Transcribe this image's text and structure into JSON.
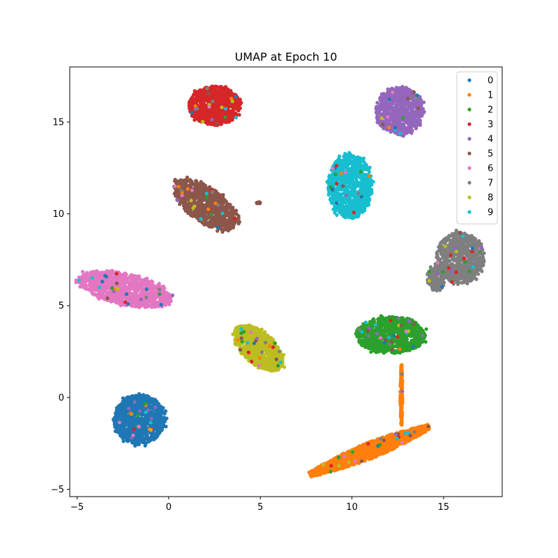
{
  "chart_data": {
    "type": "scatter",
    "title": "UMAP at Epoch 10",
    "xlabel": "",
    "ylabel": "",
    "xlim": [
      -5.4,
      18.2
    ],
    "ylim": [
      -5.4,
      18.0
    ],
    "xticks": [
      -5,
      0,
      5,
      10,
      15
    ],
    "yticks": [
      -5,
      0,
      5,
      10,
      15
    ],
    "grid": false,
    "legend_position": "top-right",
    "series": [
      {
        "name": "0",
        "color": "#1f77b4",
        "clusters": [
          {
            "type": "blob",
            "cx": -1.6,
            "cy": -1.2,
            "rx": 1.4,
            "ry": 1.35,
            "rot": 0,
            "n": 900
          }
        ]
      },
      {
        "name": "1",
        "color": "#ff7f0e",
        "clusters": [
          {
            "type": "segment",
            "x0": 7.7,
            "y0": -4.2,
            "x1": 14.2,
            "y1": -1.6,
            "width": 0.45,
            "n": 1400
          },
          {
            "type": "segment",
            "x0": 12.7,
            "y0": -1.5,
            "x1": 12.7,
            "y1": 1.8,
            "width": 0.07,
            "n": 160
          }
        ]
      },
      {
        "name": "2",
        "color": "#2ca02c",
        "clusters": [
          {
            "type": "blob",
            "cx": 12.1,
            "cy": 3.4,
            "rx": 1.9,
            "ry": 1.0,
            "rot": 0,
            "n": 900
          }
        ]
      },
      {
        "name": "3",
        "color": "#d62728",
        "clusters": [
          {
            "type": "blob",
            "cx": 2.5,
            "cy": 15.9,
            "rx": 1.4,
            "ry": 1.05,
            "rot": 0,
            "n": 900
          }
        ]
      },
      {
        "name": "4",
        "color": "#9467bd",
        "clusters": [
          {
            "type": "blob",
            "cx": 12.6,
            "cy": 15.6,
            "rx": 1.3,
            "ry": 1.3,
            "rot": 0,
            "n": 800
          }
        ]
      },
      {
        "name": "5",
        "color": "#8c564b",
        "clusters": [
          {
            "type": "blob",
            "cx": 2.0,
            "cy": 10.5,
            "rx": 2.0,
            "ry": 0.95,
            "rot": -35,
            "n": 900
          },
          {
            "type": "blob",
            "cx": 4.9,
            "cy": 10.6,
            "rx": 0.12,
            "ry": 0.05,
            "rot": 0,
            "n": 10
          }
        ]
      },
      {
        "name": "6",
        "color": "#e377c2",
        "clusters": [
          {
            "type": "blob",
            "cx": -2.4,
            "cy": 5.9,
            "rx": 2.6,
            "ry": 0.85,
            "rot": -12,
            "n": 1000
          }
        ]
      },
      {
        "name": "7",
        "color": "#7f7f7f",
        "clusters": [
          {
            "type": "blob",
            "cx": 15.9,
            "cy": 7.6,
            "rx": 1.3,
            "ry": 1.4,
            "rot": 0,
            "n": 800
          },
          {
            "type": "blob",
            "cx": 14.6,
            "cy": 6.5,
            "rx": 0.5,
            "ry": 0.7,
            "rot": 0,
            "n": 200
          }
        ]
      },
      {
        "name": "8",
        "color": "#bcbd22",
        "clusters": [
          {
            "type": "blob",
            "cx": 4.9,
            "cy": 2.7,
            "rx": 1.65,
            "ry": 0.85,
            "rot": -42,
            "n": 900
          }
        ]
      },
      {
        "name": "9",
        "color": "#17becf",
        "clusters": [
          {
            "type": "blob",
            "cx": 9.9,
            "cy": 11.5,
            "rx": 1.2,
            "ry": 1.75,
            "rot": 0,
            "n": 900
          }
        ]
      }
    ]
  }
}
